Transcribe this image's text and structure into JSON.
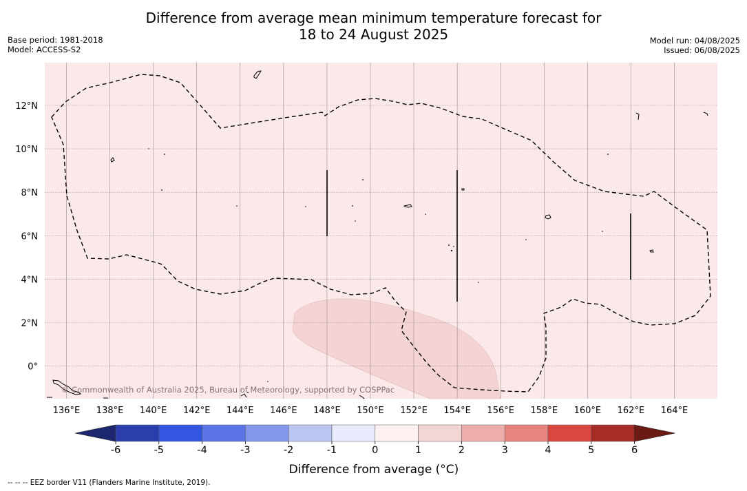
{
  "title": {
    "line1": "Difference from average mean minimum temperature forecast for",
    "line2": "18 to 24 August 2025"
  },
  "meta_left": {
    "base_period": "Base period: 1981-2018",
    "model": "Model: ACCESS-S2"
  },
  "meta_right": {
    "model_run": "Model run: 04/08/2025",
    "issued": "Issued: 06/08/2025"
  },
  "map": {
    "background_color": "#fbe9e9",
    "anomaly_band_color": "#f3d3d3",
    "lon_ticks": [
      "136°E",
      "138°E",
      "140°E",
      "142°E",
      "144°E",
      "146°E",
      "148°E",
      "150°E",
      "152°E",
      "154°E",
      "156°E",
      "158°E",
      "160°E",
      "162°E",
      "164°E"
    ],
    "lat_ticks": [
      "12°N",
      "10°N",
      "8°N",
      "6°N",
      "4°N",
      "2°N",
      "0°"
    ],
    "watermark": "© Commonwealth of Australia 2025, Bureau of Meteorology, supported by COSPPac",
    "region_shading": [
      {
        "range": "1 to 2",
        "color": "#fbe9e9"
      },
      {
        "range": "2 to 3",
        "color": "#f3d3d3"
      }
    ]
  },
  "colorbar": {
    "label": "Difference from average (°C)",
    "ticks": [
      "-6",
      "-5",
      "-4",
      "-3",
      "-2",
      "-1",
      "0",
      "1",
      "2",
      "3",
      "4",
      "5",
      "6"
    ],
    "colors": [
      "#2b3eac",
      "#3356e0",
      "#5a74e6",
      "#8597ea",
      "#bcc6f2",
      "#e8ebfb",
      "#fdf0f0",
      "#f4d5d5",
      "#edaeab",
      "#e6857f",
      "#d9473f",
      "#a62d27"
    ],
    "low_extend_color": "#1c2770",
    "high_extend_color": "#6b1a16"
  },
  "footnote": "--  --  -- EEZ border V11 (Flanders Marine Institute, 2019)."
}
